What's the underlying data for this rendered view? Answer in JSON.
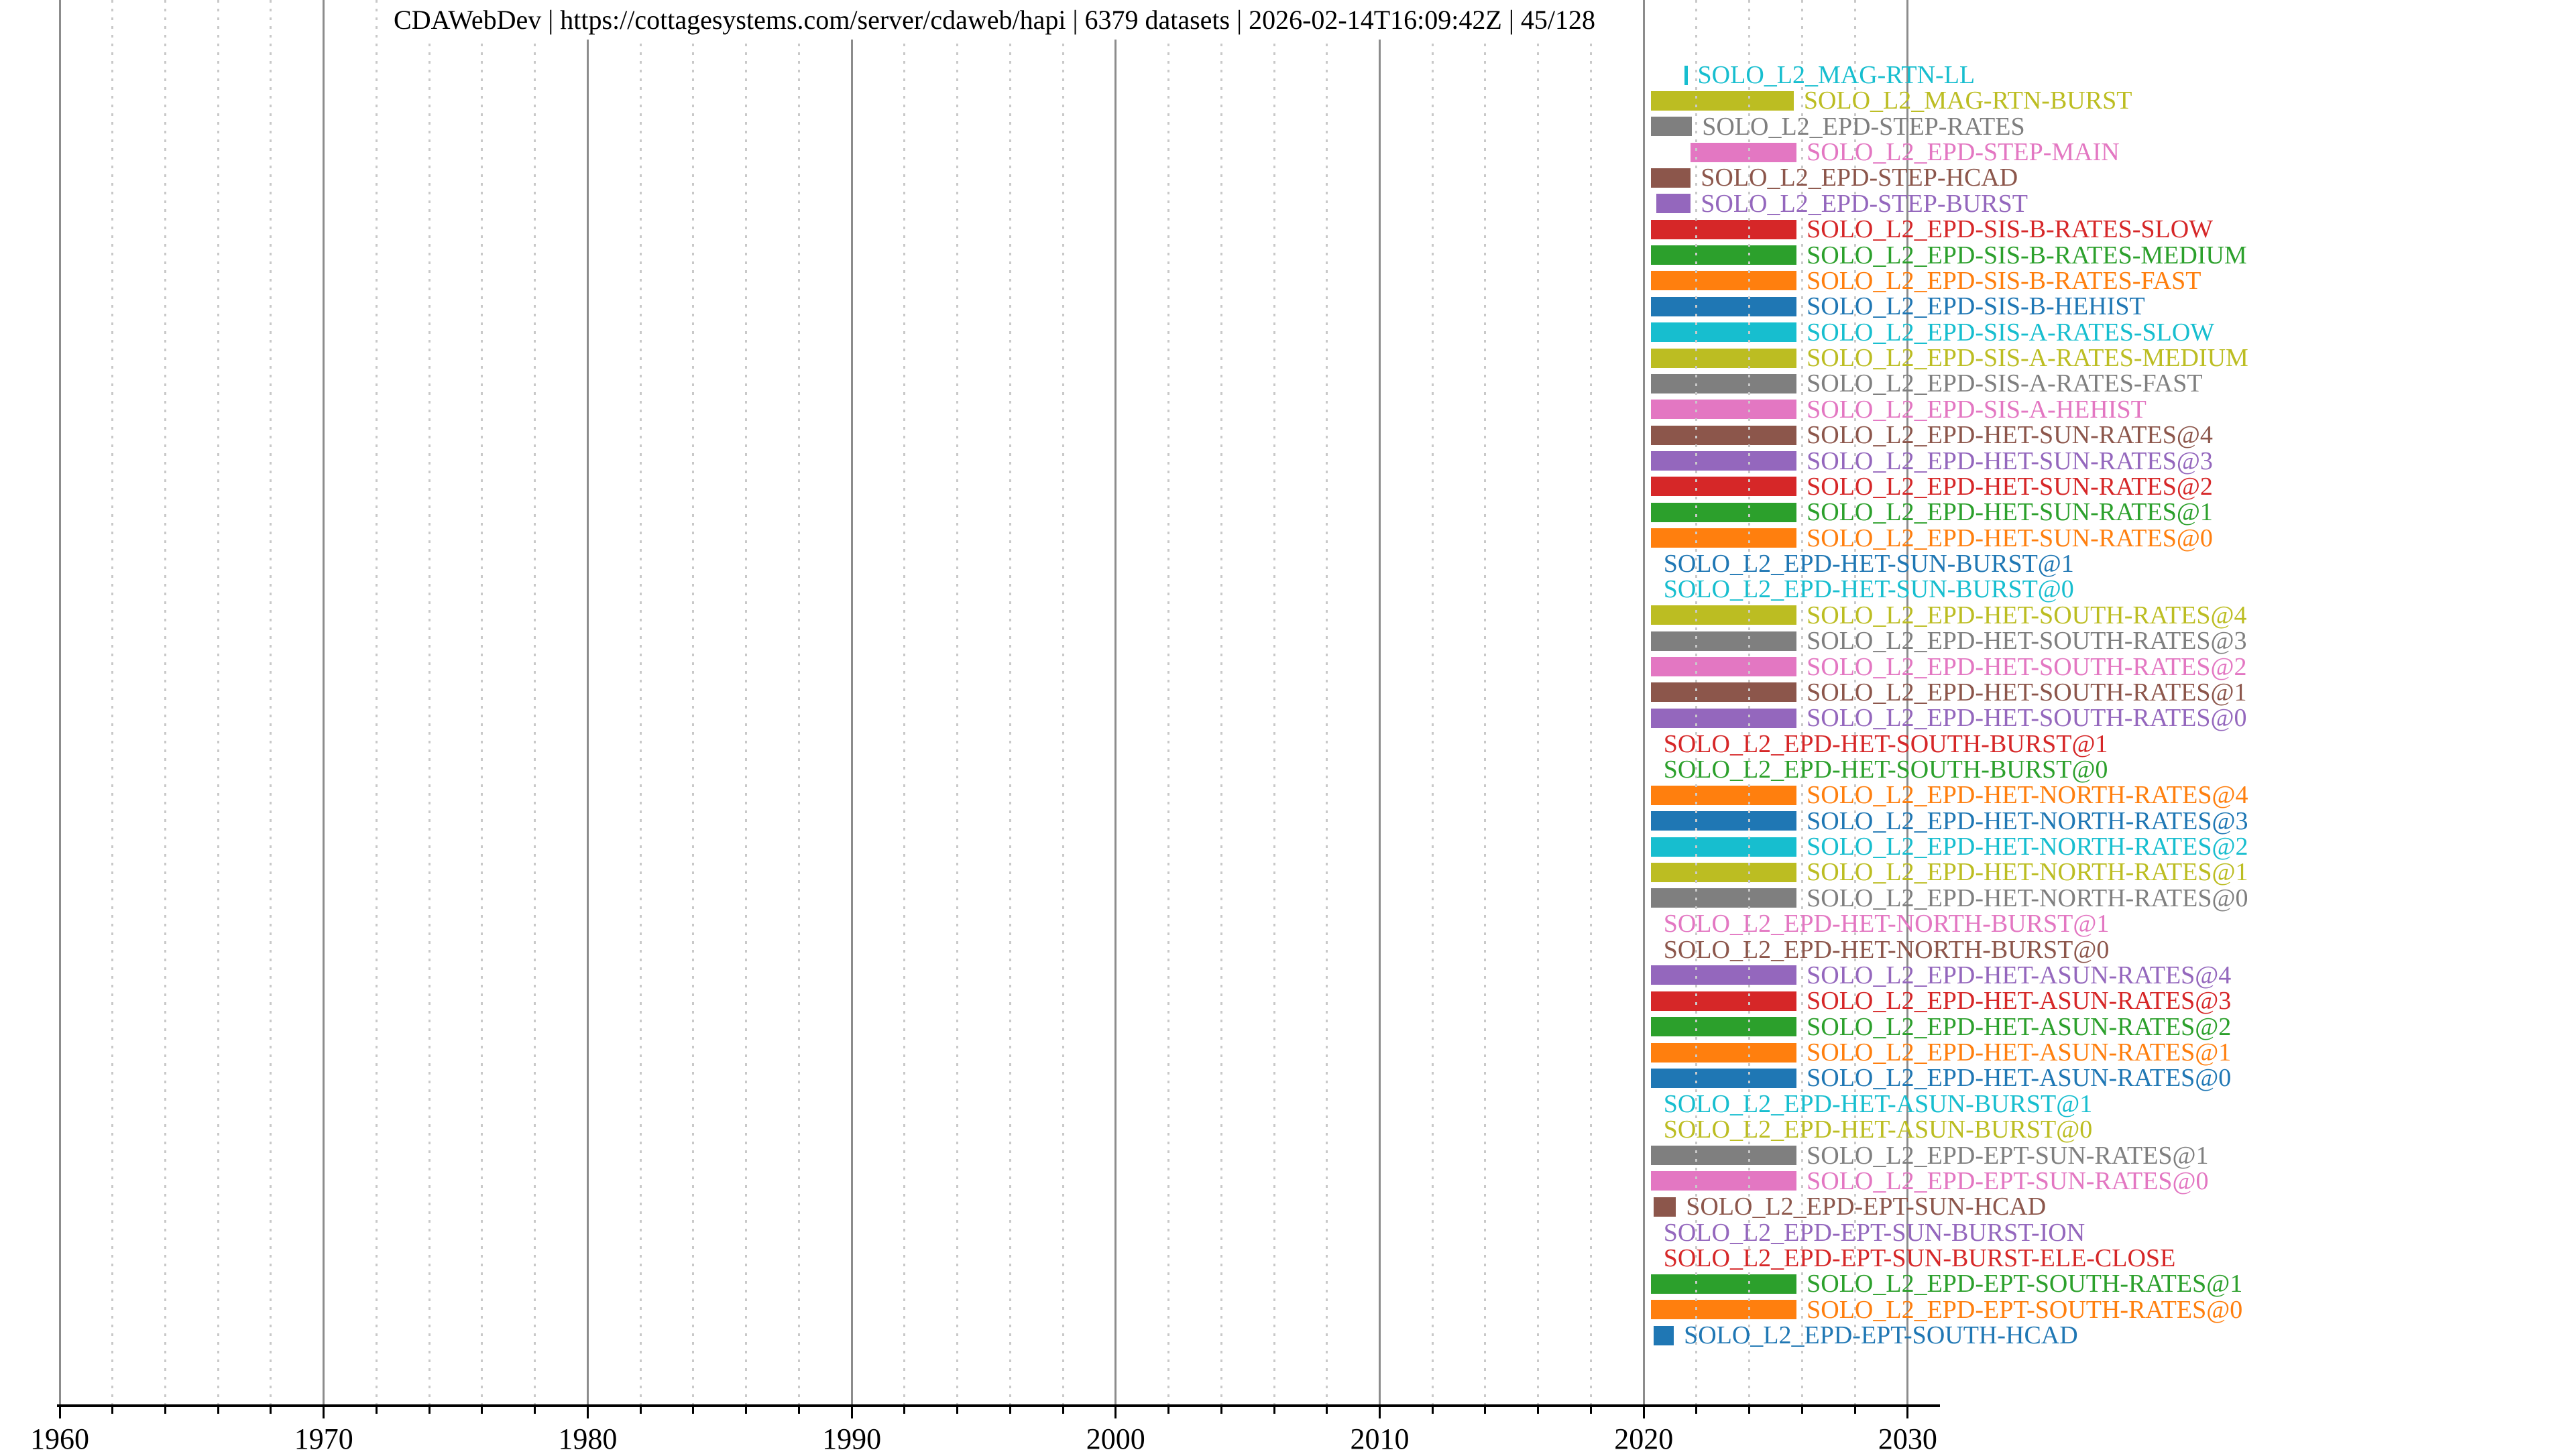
{
  "title": "CDAWebDev | https://cottagesystems.com/server/cdaweb/hapi | 6379 datasets | 2026-02-14T16:09:42Z | 45/128",
  "palette": {
    "blue": "#1f77b4",
    "orange": "#ff7f0e",
    "green": "#2ca02c",
    "red": "#d62728",
    "purple": "#9467bd",
    "brown": "#8c564b",
    "pink": "#e377c2",
    "gray": "#7f7f7f",
    "olive": "#bcbd22",
    "cyan": "#17becf",
    "grid_major": "#8c8c8c",
    "grid_minor": "#c9c9c9",
    "axis": "#000000"
  },
  "chart_data": {
    "type": "bar",
    "variant": "horizontal-timeline-availability",
    "title": "CDAWebDev | https://cottagesystems.com/server/cdaweb/hapi | 6379 datasets | 2026-02-14T16:09:42Z | 45/128",
    "xlabel": "",
    "ylabel": "",
    "xlim": [
      1959.88,
      2031.2
    ],
    "x_ticks": [
      1960,
      1970,
      1980,
      1990,
      2000,
      2010,
      2020,
      2030
    ],
    "x_minor_tick_interval": 2,
    "grid": {
      "major": "solid-gray-vertical",
      "minor": "dotted-lightgray-vertical"
    },
    "legend_position": "none",
    "rows": [
      {
        "label": "SOLO_L2_MAG-RTN-LL",
        "color": "#17becf",
        "bar": [
          2021.55,
          2021.66
        ]
      },
      {
        "label": "SOLO_L2_MAG-RTN-BURST",
        "color": "#bcbd22",
        "bar": [
          2020.28,
          2025.68
        ]
      },
      {
        "label": "SOLO_L2_EPD-STEP-RATES",
        "color": "#7f7f7f",
        "bar": [
          2020.28,
          2021.83
        ]
      },
      {
        "label": "SOLO_L2_EPD-STEP-MAIN",
        "color": "#e377c2",
        "bar": [
          2021.78,
          2025.79
        ]
      },
      {
        "label": "SOLO_L2_EPD-STEP-HCAD",
        "color": "#8c564b",
        "bar": [
          2020.28,
          2021.78
        ]
      },
      {
        "label": "SOLO_L2_EPD-STEP-BURST",
        "color": "#9467bd",
        "bar": [
          2020.48,
          2021.78
        ]
      },
      {
        "label": "SOLO_L2_EPD-SIS-B-RATES-SLOW",
        "color": "#d62728",
        "bar": [
          2020.28,
          2025.79
        ]
      },
      {
        "label": "SOLO_L2_EPD-SIS-B-RATES-MEDIUM",
        "color": "#2ca02c",
        "bar": [
          2020.28,
          2025.79
        ]
      },
      {
        "label": "SOLO_L2_EPD-SIS-B-RATES-FAST",
        "color": "#ff7f0e",
        "bar": [
          2020.28,
          2025.79
        ]
      },
      {
        "label": "SOLO_L2_EPD-SIS-B-HEHIST",
        "color": "#1f77b4",
        "bar": [
          2020.28,
          2025.79
        ]
      },
      {
        "label": "SOLO_L2_EPD-SIS-A-RATES-SLOW",
        "color": "#17becf",
        "bar": [
          2020.28,
          2025.79
        ]
      },
      {
        "label": "SOLO_L2_EPD-SIS-A-RATES-MEDIUM",
        "color": "#bcbd22",
        "bar": [
          2020.28,
          2025.79
        ]
      },
      {
        "label": "SOLO_L2_EPD-SIS-A-RATES-FAST",
        "color": "#7f7f7f",
        "bar": [
          2020.28,
          2025.79
        ]
      },
      {
        "label": "SOLO_L2_EPD-SIS-A-HEHIST",
        "color": "#e377c2",
        "bar": [
          2020.28,
          2025.79
        ]
      },
      {
        "label": "SOLO_L2_EPD-HET-SUN-RATES@4",
        "color": "#8c564b",
        "bar": [
          2020.28,
          2025.79
        ]
      },
      {
        "label": "SOLO_L2_EPD-HET-SUN-RATES@3",
        "color": "#9467bd",
        "bar": [
          2020.28,
          2025.79
        ]
      },
      {
        "label": "SOLO_L2_EPD-HET-SUN-RATES@2",
        "color": "#d62728",
        "bar": [
          2020.28,
          2025.79
        ]
      },
      {
        "label": "SOLO_L2_EPD-HET-SUN-RATES@1",
        "color": "#2ca02c",
        "bar": [
          2020.28,
          2025.79
        ]
      },
      {
        "label": "SOLO_L2_EPD-HET-SUN-RATES@0",
        "color": "#ff7f0e",
        "bar": [
          2020.28,
          2025.79
        ]
      },
      {
        "label": "SOLO_L2_EPD-HET-SUN-BURST@1",
        "color": "#1f77b4",
        "bar": null
      },
      {
        "label": "SOLO_L2_EPD-HET-SUN-BURST@0",
        "color": "#17becf",
        "bar": null
      },
      {
        "label": "SOLO_L2_EPD-HET-SOUTH-RATES@4",
        "color": "#bcbd22",
        "bar": [
          2020.28,
          2025.79
        ]
      },
      {
        "label": "SOLO_L2_EPD-HET-SOUTH-RATES@3",
        "color": "#7f7f7f",
        "bar": [
          2020.28,
          2025.79
        ]
      },
      {
        "label": "SOLO_L2_EPD-HET-SOUTH-RATES@2",
        "color": "#e377c2",
        "bar": [
          2020.28,
          2025.79
        ]
      },
      {
        "label": "SOLO_L2_EPD-HET-SOUTH-RATES@1",
        "color": "#8c564b",
        "bar": [
          2020.28,
          2025.79
        ]
      },
      {
        "label": "SOLO_L2_EPD-HET-SOUTH-RATES@0",
        "color": "#9467bd",
        "bar": [
          2020.28,
          2025.79
        ]
      },
      {
        "label": "SOLO_L2_EPD-HET-SOUTH-BURST@1",
        "color": "#d62728",
        "bar": null
      },
      {
        "label": "SOLO_L2_EPD-HET-SOUTH-BURST@0",
        "color": "#2ca02c",
        "bar": null
      },
      {
        "label": "SOLO_L2_EPD-HET-NORTH-RATES@4",
        "color": "#ff7f0e",
        "bar": [
          2020.28,
          2025.79
        ]
      },
      {
        "label": "SOLO_L2_EPD-HET-NORTH-RATES@3",
        "color": "#1f77b4",
        "bar": [
          2020.28,
          2025.79
        ]
      },
      {
        "label": "SOLO_L2_EPD-HET-NORTH-RATES@2",
        "color": "#17becf",
        "bar": [
          2020.28,
          2025.79
        ]
      },
      {
        "label": "SOLO_L2_EPD-HET-NORTH-RATES@1",
        "color": "#bcbd22",
        "bar": [
          2020.28,
          2025.79
        ]
      },
      {
        "label": "SOLO_L2_EPD-HET-NORTH-RATES@0",
        "color": "#7f7f7f",
        "bar": [
          2020.28,
          2025.79
        ]
      },
      {
        "label": "SOLO_L2_EPD-HET-NORTH-BURST@1",
        "color": "#e377c2",
        "bar": null
      },
      {
        "label": "SOLO_L2_EPD-HET-NORTH-BURST@0",
        "color": "#8c564b",
        "bar": null
      },
      {
        "label": "SOLO_L2_EPD-HET-ASUN-RATES@4",
        "color": "#9467bd",
        "bar": [
          2020.28,
          2025.79
        ]
      },
      {
        "label": "SOLO_L2_EPD-HET-ASUN-RATES@3",
        "color": "#d62728",
        "bar": [
          2020.28,
          2025.79
        ]
      },
      {
        "label": "SOLO_L2_EPD-HET-ASUN-RATES@2",
        "color": "#2ca02c",
        "bar": [
          2020.28,
          2025.79
        ]
      },
      {
        "label": "SOLO_L2_EPD-HET-ASUN-RATES@1",
        "color": "#ff7f0e",
        "bar": [
          2020.28,
          2025.79
        ]
      },
      {
        "label": "SOLO_L2_EPD-HET-ASUN-RATES@0",
        "color": "#1f77b4",
        "bar": [
          2020.28,
          2025.79
        ]
      },
      {
        "label": "SOLO_L2_EPD-HET-ASUN-BURST@1",
        "color": "#17becf",
        "bar": null
      },
      {
        "label": "SOLO_L2_EPD-HET-ASUN-BURST@0",
        "color": "#bcbd22",
        "bar": null
      },
      {
        "label": "SOLO_L2_EPD-EPT-SUN-RATES@1",
        "color": "#7f7f7f",
        "bar": [
          2020.28,
          2025.79
        ]
      },
      {
        "label": "SOLO_L2_EPD-EPT-SUN-RATES@0",
        "color": "#e377c2",
        "bar": [
          2020.28,
          2025.79
        ]
      },
      {
        "label": "SOLO_L2_EPD-EPT-SUN-HCAD",
        "color": "#8c564b",
        "bar": [
          2020.38,
          2021.22
        ]
      },
      {
        "label": "SOLO_L2_EPD-EPT-SUN-BURST-ION",
        "color": "#9467bd",
        "bar": null
      },
      {
        "label": "SOLO_L2_EPD-EPT-SUN-BURST-ELE-CLOSE",
        "color": "#d62728",
        "bar": null
      },
      {
        "label": "SOLO_L2_EPD-EPT-SOUTH-RATES@1",
        "color": "#2ca02c",
        "bar": [
          2020.28,
          2025.79
        ]
      },
      {
        "label": "SOLO_L2_EPD-EPT-SOUTH-RATES@0",
        "color": "#ff7f0e",
        "bar": [
          2020.28,
          2025.79
        ]
      },
      {
        "label": "SOLO_L2_EPD-EPT-SOUTH-HCAD",
        "color": "#1f77b4",
        "bar": [
          2020.38,
          2021.14
        ]
      }
    ],
    "no_bar_label_year": 2020.75
  }
}
